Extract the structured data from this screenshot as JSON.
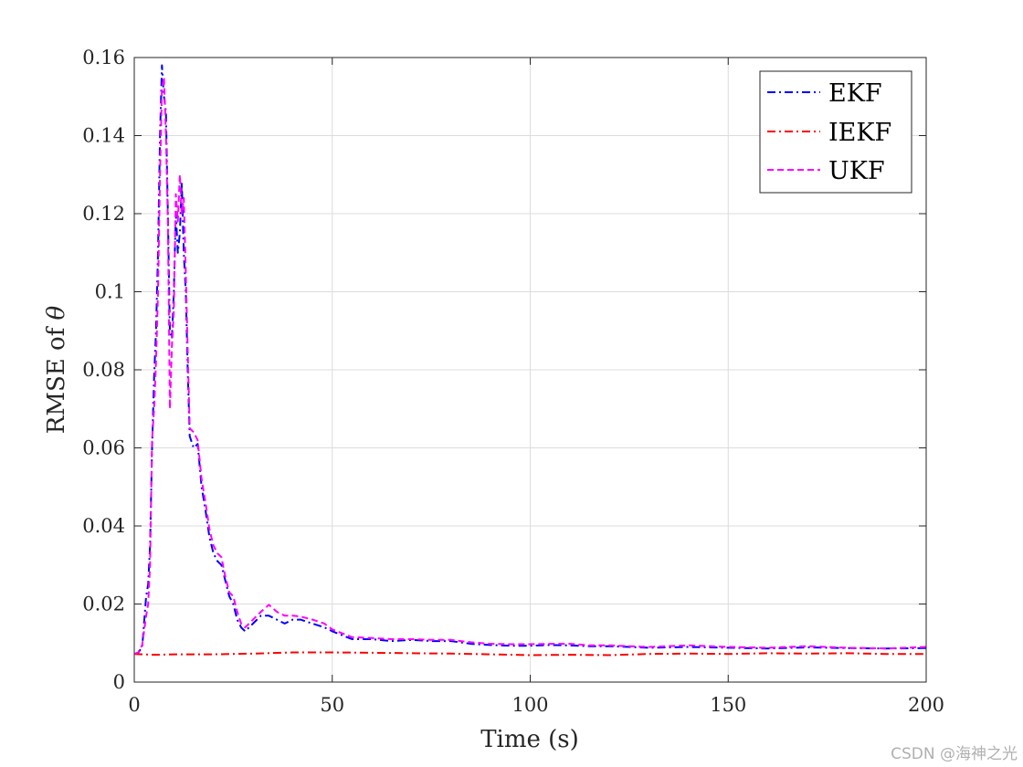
{
  "chart_data": {
    "type": "line",
    "title": "",
    "xlabel": "Time (s)",
    "ylabel_main": "RMSE of ",
    "ylabel_symbol": "θ",
    "xlim": [
      0,
      200
    ],
    "ylim": [
      0,
      0.16
    ],
    "xticks": [
      0,
      50,
      100,
      150,
      200
    ],
    "xtick_labels": [
      "0",
      "50",
      "100",
      "150",
      "200"
    ],
    "yticks": [
      0,
      0.02,
      0.04,
      0.06,
      0.08,
      0.1,
      0.12,
      0.14,
      0.16
    ],
    "ytick_labels": [
      "0",
      "0.02",
      "0.04",
      "0.06",
      "0.08",
      "0.1",
      "0.12",
      "0.14",
      "0.16"
    ],
    "grid": true,
    "legend_position": "top-right",
    "series": [
      {
        "name": "EKF",
        "color": "#0000ff",
        "dash": "dashdot",
        "x": [
          0,
          1,
          2,
          3,
          3.5,
          4,
          4.5,
          5,
          5.5,
          6,
          6.5,
          7,
          7.5,
          8,
          8.5,
          9,
          9.5,
          10,
          10.5,
          11,
          11.5,
          12,
          12.5,
          13,
          13.5,
          14,
          15,
          16,
          17,
          18,
          19,
          20,
          21,
          22,
          23,
          24,
          25,
          26,
          27,
          28,
          29,
          30,
          32,
          34,
          36,
          38,
          40,
          42,
          45,
          48,
          50,
          55,
          60,
          65,
          70,
          75,
          80,
          85,
          90,
          95,
          100,
          105,
          110,
          115,
          120,
          125,
          130,
          140,
          150,
          160,
          170,
          180,
          190,
          200
        ],
        "values": [
          0.0072,
          0.0075,
          0.009,
          0.022,
          0.025,
          0.035,
          0.06,
          0.078,
          0.09,
          0.11,
          0.14,
          0.158,
          0.15,
          0.146,
          0.12,
          0.09,
          0.088,
          0.1,
          0.12,
          0.11,
          0.115,
          0.128,
          0.11,
          0.1,
          0.08,
          0.063,
          0.06,
          0.061,
          0.05,
          0.044,
          0.037,
          0.033,
          0.031,
          0.03,
          0.026,
          0.022,
          0.02,
          0.016,
          0.014,
          0.013,
          0.014,
          0.015,
          0.017,
          0.017,
          0.016,
          0.015,
          0.016,
          0.016,
          0.015,
          0.014,
          0.013,
          0.011,
          0.011,
          0.0105,
          0.0108,
          0.0105,
          0.0105,
          0.0098,
          0.0095,
          0.0093,
          0.0093,
          0.0095,
          0.0094,
          0.0092,
          0.0092,
          0.009,
          0.0088,
          0.009,
          0.0088,
          0.0086,
          0.0089,
          0.0087,
          0.0086,
          0.0087
        ]
      },
      {
        "name": "IEKF",
        "color": "#ff0000",
        "dash": "dashdot",
        "x": [
          0,
          5,
          10,
          20,
          30,
          40,
          50,
          60,
          70,
          80,
          90,
          100,
          110,
          120,
          130,
          140,
          150,
          160,
          170,
          180,
          190,
          200
        ],
        "values": [
          0.0072,
          0.007,
          0.0071,
          0.0071,
          0.0073,
          0.0076,
          0.0076,
          0.0075,
          0.0074,
          0.0073,
          0.0071,
          0.0069,
          0.007,
          0.0069,
          0.0072,
          0.0073,
          0.0072,
          0.0074,
          0.0073,
          0.0074,
          0.0072,
          0.0072
        ]
      },
      {
        "name": "UKF",
        "color": "#ff00ff",
        "dash": "dash",
        "x": [
          0,
          1,
          2,
          3,
          3.5,
          4,
          4.5,
          5,
          5.5,
          6,
          6.5,
          7,
          7.5,
          8,
          8.5,
          9,
          9.5,
          10,
          10.5,
          11,
          11.5,
          12,
          12.5,
          13,
          13.5,
          14,
          15,
          16,
          17,
          18,
          19,
          20,
          21,
          22,
          23,
          24,
          25,
          26,
          27,
          28,
          29,
          30,
          32,
          34,
          36,
          38,
          40,
          42,
          45,
          48,
          50,
          55,
          60,
          65,
          70,
          75,
          80,
          85,
          90,
          95,
          100,
          105,
          110,
          115,
          120,
          125,
          130,
          140,
          150,
          160,
          170,
          180,
          190,
          200
        ],
        "values": [
          0.0072,
          0.0076,
          0.0095,
          0.017,
          0.02,
          0.03,
          0.062,
          0.07,
          0.082,
          0.1,
          0.13,
          0.152,
          0.155,
          0.14,
          0.118,
          0.07,
          0.086,
          0.095,
          0.125,
          0.118,
          0.13,
          0.12,
          0.124,
          0.105,
          0.085,
          0.065,
          0.064,
          0.062,
          0.052,
          0.046,
          0.039,
          0.035,
          0.033,
          0.032,
          0.027,
          0.023,
          0.022,
          0.018,
          0.015,
          0.014,
          0.015,
          0.016,
          0.018,
          0.0198,
          0.018,
          0.017,
          0.017,
          0.0168,
          0.016,
          0.015,
          0.0135,
          0.0115,
          0.0113,
          0.011,
          0.011,
          0.0108,
          0.0108,
          0.0102,
          0.0098,
          0.0097,
          0.0097,
          0.0098,
          0.0098,
          0.0094,
          0.0094,
          0.0092,
          0.009,
          0.0094,
          0.009,
          0.0088,
          0.0092,
          0.0088,
          0.0086,
          0.009
        ]
      }
    ]
  },
  "watermark": "CSDN @海神之光"
}
